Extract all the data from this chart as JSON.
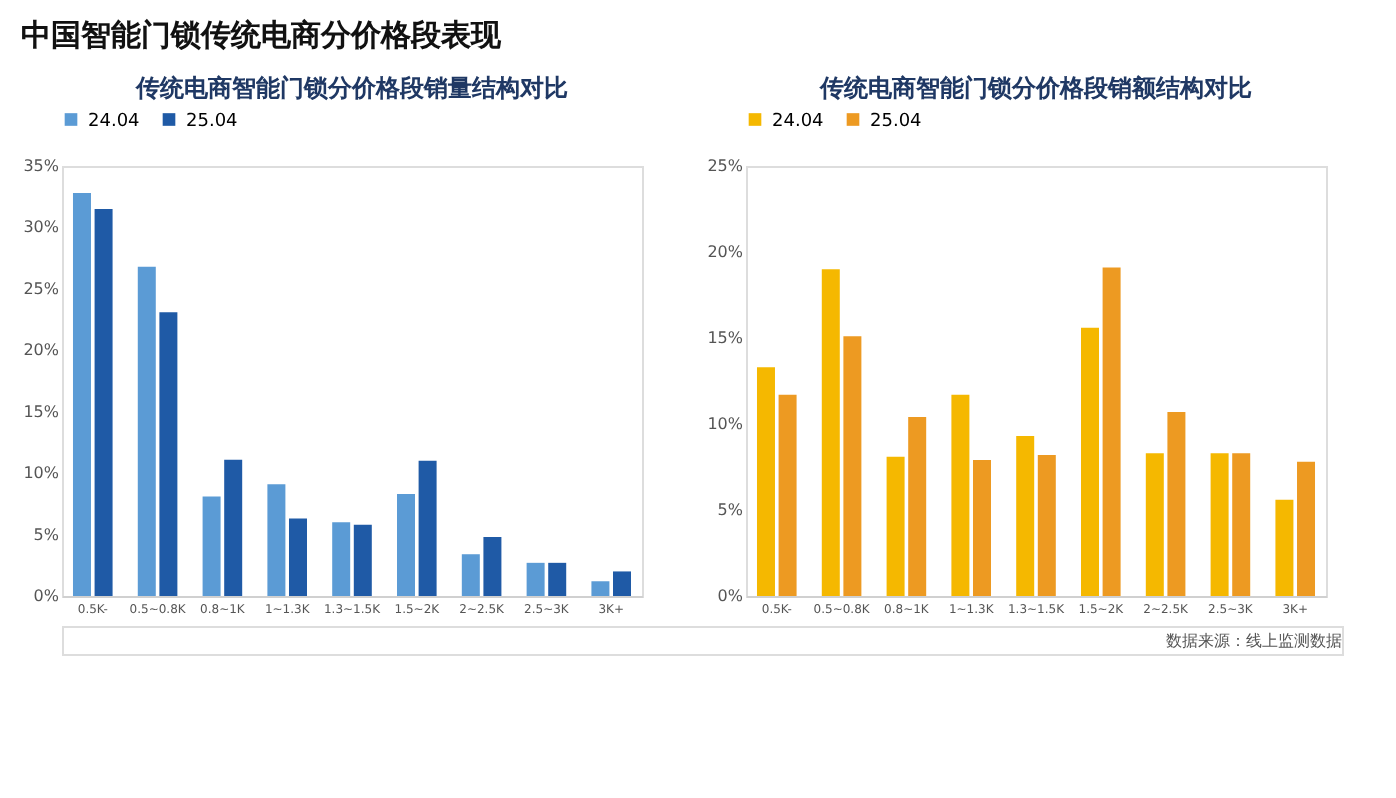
{
  "chart_data": [
    {
      "type": "other",
      "title": "中国智能门锁传统电商分价格段表现",
      "annotations": [
        "数据来源：线上监测数据"
      ]
    },
    {
      "type": "bar",
      "title": "传统电商智能门锁分价格段销量结构对比",
      "categories": [
        "0.5K-",
        "0.5~0.8K",
        "0.8~1K",
        "1~1.3K",
        "1.3~1.5K",
        "1.5~2K",
        "2~2.5K",
        "2.5~3K",
        "3K+"
      ],
      "series": [
        {
          "name": "24.04",
          "color": "#5b9bd5",
          "values": [
            32.8,
            26.8,
            8.1,
            9.1,
            6.0,
            8.3,
            3.4,
            2.7,
            1.2
          ]
        },
        {
          "name": "25.04",
          "color": "#1f5aa6",
          "values": [
            31.5,
            23.1,
            11.1,
            6.3,
            5.8,
            11.0,
            4.8,
            2.7,
            2.0
          ]
        }
      ],
      "ylim": [
        0,
        35
      ],
      "yticks": [
        {
          "value": 0,
          "label": "0%"
        },
        {
          "value": 5,
          "label": "5%"
        },
        {
          "value": 10,
          "label": "10%"
        },
        {
          "value": 15,
          "label": "15%"
        },
        {
          "value": 20,
          "label": "20%"
        },
        {
          "value": 25,
          "label": "25%"
        },
        {
          "value": 30,
          "label": "30%"
        },
        {
          "value": 35,
          "label": "35%"
        }
      ],
      "grid": false,
      "legend": "top"
    },
    {
      "type": "bar",
      "title": "传统电商智能门锁分价格段销额结构对比",
      "categories": [
        "0.5K-",
        "0.5~0.8K",
        "0.8~1K",
        "1~1.3K",
        "1.3~1.5K",
        "1.5~2K",
        "2~2.5K",
        "2.5~3K",
        "3K+"
      ],
      "series": [
        {
          "name": "24.04",
          "color": "#f5b800",
          "values": [
            13.3,
            19.0,
            8.1,
            11.7,
            9.3,
            15.6,
            8.3,
            8.3,
            5.6
          ]
        },
        {
          "name": "25.04",
          "color": "#ed9a22",
          "values": [
            11.7,
            15.1,
            10.4,
            7.9,
            8.2,
            19.1,
            10.7,
            8.3,
            7.8
          ]
        }
      ],
      "ylim": [
        0,
        25
      ],
      "yticks": [
        {
          "value": 0,
          "label": "0%"
        },
        {
          "value": 5,
          "label": "5%"
        },
        {
          "value": 10,
          "label": "10%"
        },
        {
          "value": 15,
          "label": "15%"
        },
        {
          "value": 20,
          "label": "20%"
        },
        {
          "value": 25,
          "label": "25%"
        }
      ],
      "grid": false,
      "legend": "top"
    }
  ]
}
